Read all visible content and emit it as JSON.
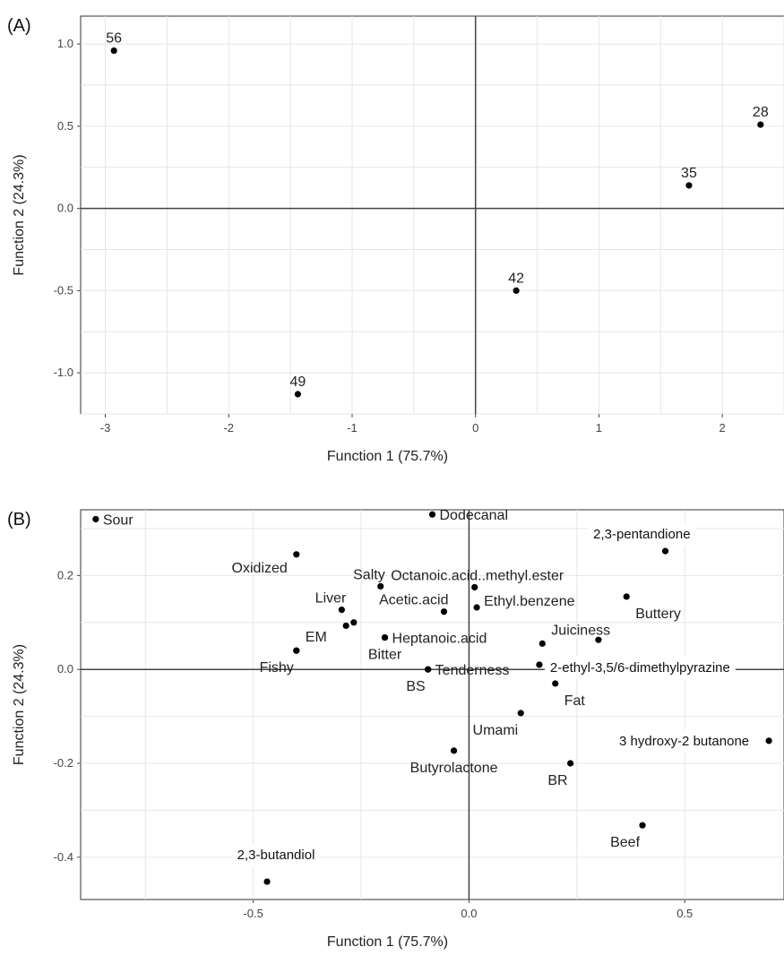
{
  "charts": [
    {
      "panel_label": "(A)",
      "chart_data": {
        "type": "scatter",
        "xlabel": "Function 1 (75.7%)",
        "ylabel": "Function 2 (24.3%)",
        "xlim": [
          -3.2,
          2.5
        ],
        "ylim": [
          -1.25,
          1.17
        ],
        "xticks": [
          -3,
          -2,
          -1,
          0,
          1,
          2
        ],
        "yticks": [
          -1.0,
          -0.5,
          0.0,
          0.5,
          1.0
        ],
        "xtick_labels": [
          "-3",
          "-2",
          "-1",
          "0",
          "1",
          "2"
        ],
        "ytick_labels": [
          "-1.0",
          "-0.5",
          "0.0",
          "0.5",
          "1.0"
        ],
        "grid": true,
        "points": [
          {
            "label": "56",
            "x": -2.93,
            "y": 0.96,
            "pos": "above"
          },
          {
            "label": "28",
            "x": 2.31,
            "y": 0.51,
            "pos": "above"
          },
          {
            "label": "35",
            "x": 1.73,
            "y": 0.14,
            "pos": "above"
          },
          {
            "label": "42",
            "x": 0.33,
            "y": -0.5,
            "pos": "above"
          },
          {
            "label": "49",
            "x": -1.44,
            "y": -1.13,
            "pos": "above"
          }
        ]
      }
    },
    {
      "panel_label": "(B)",
      "chart_data": {
        "type": "scatter",
        "xlabel": "Function 1 (75.7%)",
        "ylabel": "Function 2 (24.3%)",
        "xlim": [
          -0.9,
          0.73
        ],
        "ylim": [
          -0.49,
          0.34
        ],
        "xticks": [
          -0.5,
          0.0,
          0.5
        ],
        "yticks": [
          -0.4,
          -0.2,
          0.0,
          0.2
        ],
        "xtick_labels": [
          "-0.5",
          "0.0",
          "0.5"
        ],
        "ytick_labels": [
          "-0.4",
          "-0.2",
          "0.0",
          "0.2"
        ],
        "grid": true,
        "points": [
          {
            "label": "Sour",
            "x": -0.865,
            "y": 0.32,
            "pos": "right"
          },
          {
            "label": "Dodecanal",
            "x": -0.085,
            "y": 0.33,
            "pos": "right"
          },
          {
            "label": "Oxidized",
            "x": -0.4,
            "y": 0.245,
            "pos": "left-below"
          },
          {
            "label": "Salty",
            "x": -0.205,
            "y": 0.177,
            "pos": "above-left"
          },
          {
            "label": "Octanoic.acid..methyl.ester",
            "x": 0.013,
            "y": 0.175,
            "pos": "above-center"
          },
          {
            "label": "Liver",
            "x": -0.295,
            "y": 0.127,
            "pos": "above-left"
          },
          {
            "label": "Acetic.acid",
            "x": -0.058,
            "y": 0.123,
            "pos": "above-left"
          },
          {
            "label": "Ethyl.benzene",
            "x": 0.018,
            "y": 0.132,
            "pos": "right-above"
          },
          {
            "label": "",
            "x": -0.285,
            "y": 0.093,
            "pos": "none"
          },
          {
            "label": "",
            "x": -0.267,
            "y": 0.1,
            "pos": "none"
          },
          {
            "label": "EM",
            "x": -0.4,
            "y": 0.04,
            "pos": "above-right"
          },
          {
            "label": "Fishy",
            "x": -0.4,
            "y": 0.04,
            "pos": "below-left"
          },
          {
            "label": "Heptanoic.acid",
            "x": -0.195,
            "y": 0.068,
            "pos": "right"
          },
          {
            "label": "Bitter",
            "x": -0.195,
            "y": 0.068,
            "pos": "below"
          },
          {
            "label": "BS",
            "x": -0.095,
            "y": 0.0,
            "pos": "below-left"
          },
          {
            "label": "Tenderness",
            "x": -0.095,
            "y": 0.0,
            "pos": "right"
          },
          {
            "label": "Juiciness",
            "x": 0.17,
            "y": 0.055,
            "pos": "above-right"
          },
          {
            "label": "",
            "x": 0.3,
            "y": 0.063,
            "pos": "none"
          },
          {
            "label": "Buttery",
            "x": 0.365,
            "y": 0.155,
            "pos": "below-right"
          },
          {
            "label": "2,3-pentandione",
            "x": 0.455,
            "y": 0.252,
            "pos": "above-left-box"
          },
          {
            "label": "2-ethyl-3,5/6-dimethylpyrazine",
            "x": 0.163,
            "y": 0.01,
            "pos": "right-box"
          },
          {
            "label": "Fat",
            "x": 0.2,
            "y": -0.03,
            "pos": "below-right"
          },
          {
            "label": "Umami",
            "x": 0.12,
            "y": -0.093,
            "pos": "below-left"
          },
          {
            "label": "3 hydroxy-2 butanone",
            "x": 0.695,
            "y": -0.152,
            "pos": "left-box"
          },
          {
            "label": "Butyrolactone",
            "x": -0.035,
            "y": -0.173,
            "pos": "below"
          },
          {
            "label": "BR",
            "x": 0.235,
            "y": -0.2,
            "pos": "below-left"
          },
          {
            "label": "Beef",
            "x": 0.402,
            "y": -0.332,
            "pos": "below-left"
          },
          {
            "label": "2,3-butandiol",
            "x": -0.468,
            "y": -0.452,
            "pos": "above-box"
          }
        ]
      }
    }
  ]
}
